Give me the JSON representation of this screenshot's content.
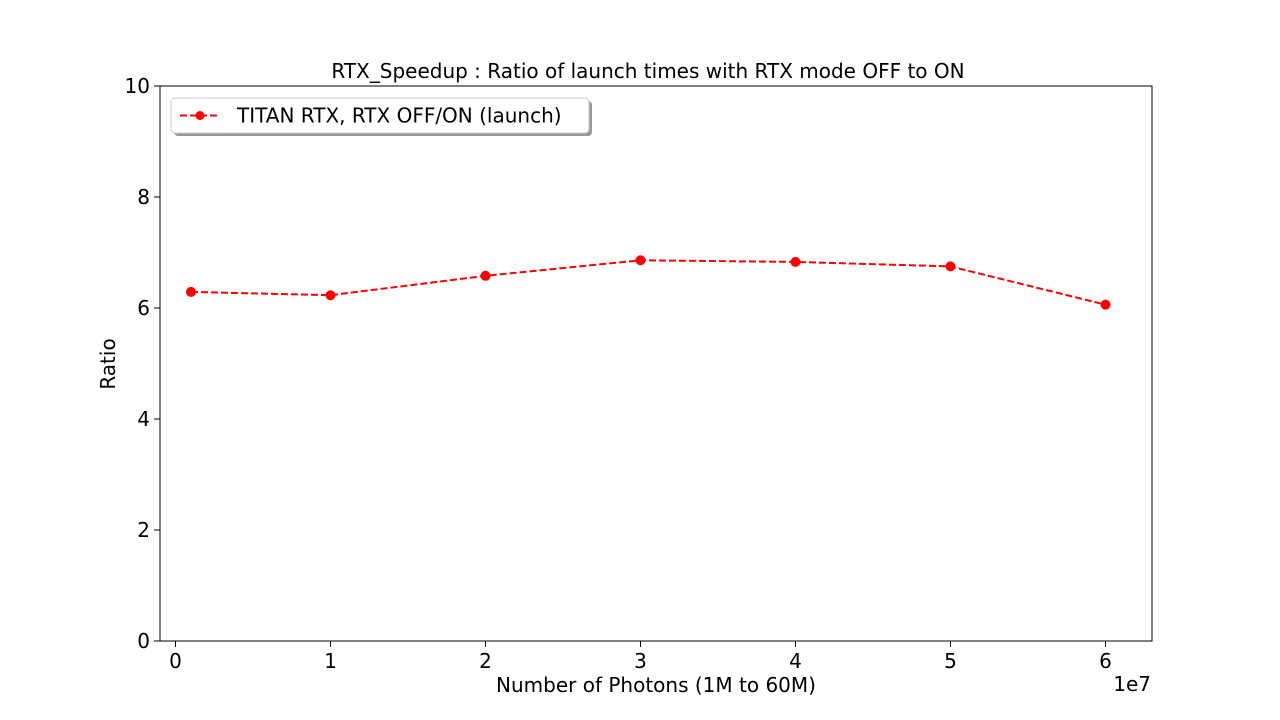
{
  "chart_data": {
    "type": "line",
    "title": "RTX_Speedup : Ratio of launch times with RTX mode OFF to ON",
    "xlabel": "Number of Photons (1M to 60M)",
    "ylabel": "Ratio",
    "x_offset_label": "1e7",
    "xlim": [
      -1000000,
      63000000
    ],
    "ylim": [
      0,
      10
    ],
    "x_ticks": [
      0,
      1,
      2,
      3,
      4,
      5,
      6
    ],
    "y_ticks": [
      0,
      2,
      4,
      6,
      8,
      10
    ],
    "grid": false,
    "legend_position": "upper-left",
    "series": [
      {
        "name": "TITAN RTX, RTX OFF/ON (launch)",
        "color": "#ff0000",
        "line_style": "dashed",
        "marker": "circle",
        "x": [
          1000000,
          10000000,
          20000000,
          30000000,
          40000000,
          50000000,
          60000000
        ],
        "y": [
          6.29,
          6.23,
          6.58,
          6.86,
          6.83,
          6.75,
          6.06
        ]
      }
    ]
  }
}
